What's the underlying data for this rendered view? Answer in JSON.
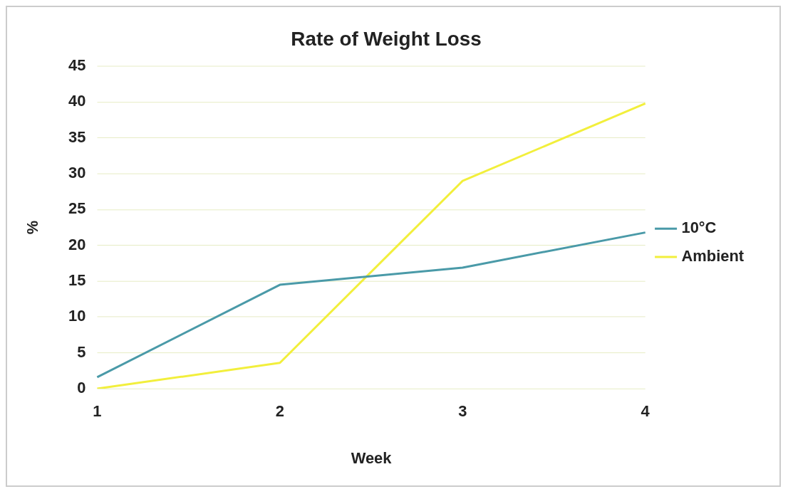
{
  "chart_data": {
    "type": "line",
    "title": "Rate of Weight Loss",
    "xlabel": "Week",
    "ylabel": "%",
    "categories": [
      "1",
      "2",
      "3",
      "4"
    ],
    "series": [
      {
        "name": "10°C",
        "color": "#4a9aa8",
        "values": [
          1.6,
          14.5,
          16.9,
          21.8
        ]
      },
      {
        "name": "Ambient",
        "color": "#f2ef3c",
        "values": [
          0,
          3.6,
          29,
          39.8
        ]
      }
    ],
    "ylim": [
      0,
      45
    ],
    "yticks": [
      0,
      5,
      10,
      15,
      20,
      25,
      30,
      35,
      40,
      45
    ],
    "grid": "y",
    "legend": "right",
    "marker": "none",
    "line_style": "solid"
  }
}
